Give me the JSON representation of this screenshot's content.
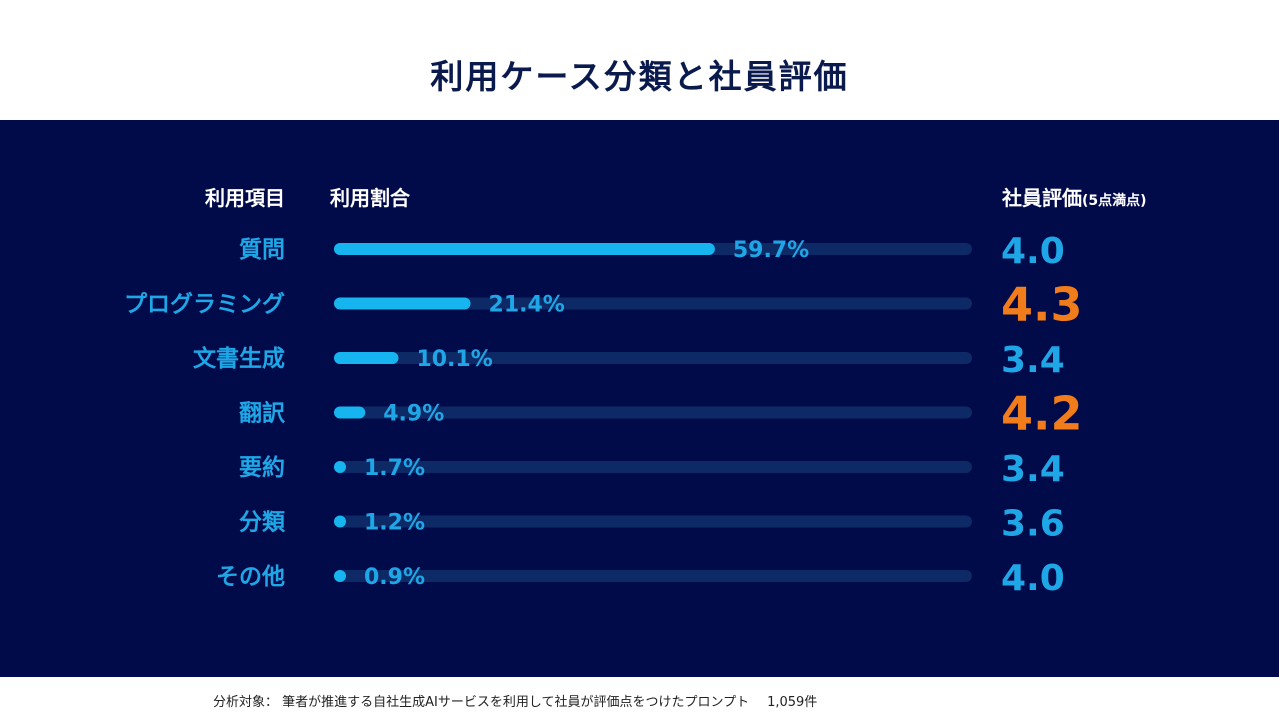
{
  "title": "利用ケース分類と社員評価",
  "headers": {
    "item": "利用項目",
    "ratio": "利用割合",
    "rating": "社員評価",
    "rating_sub": "(5点満点)"
  },
  "colors": {
    "background_panel": "#020b4a",
    "bar": "#17b5f0",
    "track": "#0d2a66",
    "label": "#1fa6e6",
    "rating": "#1fa6e6",
    "rating_highlight": "#f07c1b"
  },
  "chart_data": {
    "type": "bar",
    "orientation": "horizontal",
    "categories": [
      "質問",
      "プログラミング",
      "文書生成",
      "翻訳",
      "要約",
      "分類",
      "その他"
    ],
    "values": [
      59.7,
      21.4,
      10.1,
      4.9,
      1.7,
      1.2,
      0.9
    ],
    "value_labels": [
      "59.7%",
      "21.4%",
      "10.1%",
      "4.9%",
      "1.7%",
      "1.2%",
      "0.9%"
    ],
    "xlim": [
      0,
      100
    ],
    "ratings": [
      4.0,
      4.3,
      3.4,
      4.2,
      3.4,
      3.6,
      4.0
    ],
    "rating_labels": [
      "4.0",
      "4.3",
      "3.4",
      "4.2",
      "3.4",
      "3.6",
      "4.0"
    ],
    "highlighted": [
      false,
      true,
      false,
      true,
      false,
      false,
      false
    ]
  },
  "footer": {
    "note": "分析対象： 筆者が推進する自社生成AIサービスを利用して社員が評価点をつけたプロンプト",
    "count": "1,059件"
  }
}
